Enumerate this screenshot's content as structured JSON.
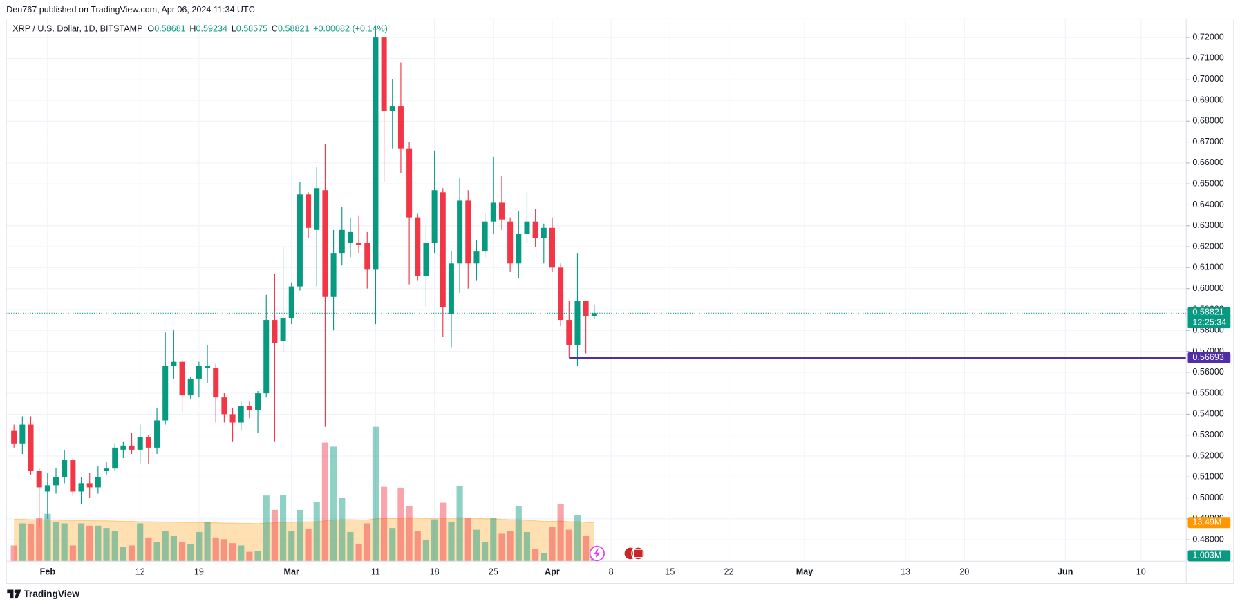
{
  "header": {
    "published": "Den767 published on TradingView.com, Apr 06, 2024 11:34 UTC"
  },
  "legend": {
    "symbol": "XRP / U.S. Dollar, 1D, BITSTAMP",
    "items": [
      {
        "key": "O",
        "value": "0.58681"
      },
      {
        "key": "H",
        "value": "0.59234"
      },
      {
        "key": "L",
        "value": "0.58575"
      },
      {
        "key": "C",
        "value": "0.58821"
      }
    ],
    "change": "+0.00082 (+0.14%)"
  },
  "footer": {
    "brand": "TradingView"
  },
  "chart_data": {
    "type": "candlestick",
    "x": [
      "2024-01-28",
      "2024-01-29",
      "2024-01-30",
      "2024-01-31",
      "2024-02-01",
      "2024-02-02",
      "2024-02-03",
      "2024-02-04",
      "2024-02-05",
      "2024-02-06",
      "2024-02-07",
      "2024-02-08",
      "2024-02-09",
      "2024-02-10",
      "2024-02-11",
      "2024-02-12",
      "2024-02-13",
      "2024-02-14",
      "2024-02-15",
      "2024-02-16",
      "2024-02-17",
      "2024-02-18",
      "2024-02-19",
      "2024-02-20",
      "2024-02-21",
      "2024-02-22",
      "2024-02-23",
      "2024-02-24",
      "2024-02-25",
      "2024-02-26",
      "2024-02-27",
      "2024-02-28",
      "2024-02-29",
      "2024-03-01",
      "2024-03-02",
      "2024-03-03",
      "2024-03-04",
      "2024-03-05",
      "2024-03-06",
      "2024-03-07",
      "2024-03-08",
      "2024-03-09",
      "2024-03-10",
      "2024-03-11",
      "2024-03-12",
      "2024-03-13",
      "2024-03-14",
      "2024-03-15",
      "2024-03-16",
      "2024-03-17",
      "2024-03-18",
      "2024-03-19",
      "2024-03-20",
      "2024-03-21",
      "2024-03-22",
      "2024-03-23",
      "2024-03-24",
      "2024-03-25",
      "2024-03-26",
      "2024-03-27",
      "2024-03-28",
      "2024-03-29",
      "2024-03-30",
      "2024-03-31",
      "2024-04-01",
      "2024-04-02",
      "2024-04-03",
      "2024-04-04",
      "2024-04-05",
      "2024-04-06"
    ],
    "open": [
      0.532,
      0.526,
      0.535,
      0.513,
      0.503,
      0.506,
      0.51,
      0.518,
      0.503,
      0.507,
      0.505,
      0.513,
      0.514,
      0.523,
      0.525,
      0.523,
      0.529,
      0.524,
      0.537,
      0.563,
      0.565,
      0.549,
      0.557,
      0.562,
      0.562,
      0.548,
      0.54,
      0.536,
      0.544,
      0.542,
      0.55,
      0.585,
      0.575,
      0.586,
      0.601,
      0.645,
      0.628,
      0.647,
      0.596,
      0.617,
      0.622,
      0.622,
      0.622,
      0.609,
      0.72,
      0.685,
      0.687,
      0.667,
      0.634,
      0.606,
      0.622,
      0.646,
      0.588,
      0.612,
      0.642,
      0.612,
      0.618,
      0.632,
      0.641,
      0.632,
      0.612,
      0.626,
      0.632,
      0.624,
      0.629,
      0.61,
      0.585,
      0.573,
      0.594,
      0.58681
    ],
    "high": [
      0.535,
      0.539,
      0.539,
      0.514,
      0.512,
      0.514,
      0.523,
      0.519,
      0.51,
      0.512,
      0.515,
      0.517,
      0.526,
      0.527,
      0.531,
      0.535,
      0.53,
      0.543,
      0.579,
      0.58,
      0.566,
      0.558,
      0.565,
      0.573,
      0.564,
      0.55,
      0.543,
      0.546,
      0.546,
      0.551,
      0.597,
      0.607,
      0.62,
      0.603,
      0.651,
      0.646,
      0.658,
      0.669,
      0.628,
      0.639,
      0.634,
      0.635,
      0.627,
      0.723,
      0.72,
      0.7,
      0.708,
      0.67,
      0.636,
      0.63,
      0.666,
      0.648,
      0.618,
      0.653,
      0.647,
      0.623,
      0.636,
      0.663,
      0.654,
      0.634,
      0.637,
      0.646,
      0.638,
      0.631,
      0.634,
      0.612,
      0.594,
      0.617,
      0.594,
      0.59234
    ],
    "low": [
      0.524,
      0.521,
      0.511,
      0.486,
      0.49,
      0.502,
      0.507,
      0.501,
      0.497,
      0.5,
      0.502,
      0.511,
      0.513,
      0.519,
      0.521,
      0.516,
      0.516,
      0.521,
      0.535,
      0.557,
      0.541,
      0.547,
      0.548,
      0.555,
      0.536,
      0.536,
      0.527,
      0.532,
      0.538,
      0.531,
      0.548,
      0.527,
      0.57,
      0.583,
      0.599,
      0.624,
      0.601,
      0.534,
      0.58,
      0.611,
      0.615,
      0.617,
      0.6,
      0.583,
      0.651,
      0.667,
      0.655,
      0.602,
      0.604,
      0.591,
      0.617,
      0.577,
      0.572,
      0.598,
      0.6,
      0.604,
      0.615,
      0.626,
      0.628,
      0.608,
      0.605,
      0.622,
      0.62,
      0.612,
      0.608,
      0.582,
      0.567,
      0.563,
      0.569,
      0.58575
    ],
    "close": [
      0.526,
      0.535,
      0.513,
      0.505,
      0.506,
      0.51,
      0.518,
      0.503,
      0.507,
      0.505,
      0.51,
      0.514,
      0.524,
      0.525,
      0.523,
      0.529,
      0.524,
      0.537,
      0.563,
      0.565,
      0.549,
      0.557,
      0.563,
      0.563,
      0.548,
      0.54,
      0.536,
      0.544,
      0.542,
      0.55,
      0.585,
      0.574,
      0.586,
      0.601,
      0.645,
      0.629,
      0.648,
      0.596,
      0.617,
      0.628,
      0.627,
      0.621,
      0.609,
      0.72,
      0.685,
      0.687,
      0.667,
      0.634,
      0.606,
      0.622,
      0.647,
      0.591,
      0.612,
      0.642,
      0.612,
      0.618,
      0.632,
      0.641,
      0.633,
      0.612,
      0.626,
      0.632,
      0.624,
      0.629,
      0.61,
      0.585,
      0.573,
      0.594,
      0.587,
      0.58821
    ],
    "volume": [
      5.5,
      13.2,
      12.9,
      15.1,
      16.5,
      13.8,
      13.2,
      5.5,
      13.2,
      12.4,
      12.4,
      11.6,
      10.5,
      5.0,
      5.5,
      13.2,
      8.3,
      6.6,
      10.5,
      8.8,
      6.6,
      6.1,
      10.2,
      13.8,
      8.3,
      7.7,
      6.3,
      5.5,
      3.3,
      3.6,
      22.9,
      17.9,
      23.1,
      10.5,
      17.9,
      11.3,
      20.6,
      41.3,
      39.9,
      22.0,
      10.2,
      6.1,
      13.2,
      46.8,
      25.9,
      11.6,
      25.6,
      19.3,
      10.5,
      7.4,
      14.6,
      20.4,
      13.8,
      26.2,
      15.1,
      11.0,
      6.6,
      15.1,
      9.6,
      10.5,
      19.3,
      10.2,
      4.4,
      2.8,
      12.1,
      19.8,
      11.0,
      16.0,
      8.8,
      1.003
    ],
    "volume_label": "1.003M",
    "volume_ma": [
      14.6,
      14.6,
      14.5,
      14.5,
      14.4,
      14.4,
      14.3,
      14.3,
      14.2,
      14.2,
      14.1,
      14.1,
      14.0,
      13.9,
      13.9,
      13.8,
      13.8,
      13.7,
      13.7,
      13.6,
      13.6,
      13.5,
      13.5,
      13.4,
      13.4,
      13.3,
      13.3,
      13.2,
      13.2,
      13.1,
      13.3,
      13.4,
      13.6,
      13.6,
      13.7,
      13.7,
      13.8,
      14.1,
      14.4,
      14.5,
      14.5,
      14.4,
      14.4,
      14.8,
      15.0,
      14.9,
      15.1,
      15.2,
      15.1,
      15.0,
      15.0,
      15.1,
      15.0,
      15.2,
      15.1,
      15.0,
      14.8,
      14.8,
      14.6,
      14.5,
      14.5,
      14.3,
      14.1,
      13.9,
      13.9,
      14.0,
      13.8,
      13.8,
      13.6,
      13.49
    ],
    "volume_ma_label": "13.49M",
    "up_color": "#089981",
    "down_color": "#f23645",
    "volume_ma_color": "#ff9800",
    "countdown": "12:25:34",
    "horizontal_line": {
      "value": 0.56693,
      "start": "2024-04-03",
      "color": "#512da8"
    },
    "xlim": [
      "2024-01-27",
      "2024-06-15"
    ],
    "xticks": [
      {
        "value": "2024-02-01",
        "label": "Feb"
      },
      {
        "value": "2024-02-12",
        "label": "12"
      },
      {
        "value": "2024-02-19",
        "label": "19"
      },
      {
        "value": "2024-03-01",
        "label": "Mar"
      },
      {
        "value": "2024-03-11",
        "label": "11"
      },
      {
        "value": "2024-03-18",
        "label": "18"
      },
      {
        "value": "2024-03-25",
        "label": "25"
      },
      {
        "value": "2024-04-01",
        "label": "Apr"
      },
      {
        "value": "2024-04-08",
        "label": "8"
      },
      {
        "value": "2024-04-15",
        "label": "15"
      },
      {
        "value": "2024-04-22",
        "label": "22"
      },
      {
        "value": "2024-05-01",
        "label": "May"
      },
      {
        "value": "2024-05-13",
        "label": "13"
      },
      {
        "value": "2024-05-20",
        "label": "20"
      },
      {
        "value": "2024-06-01",
        "label": "Jun"
      },
      {
        "value": "2024-06-10",
        "label": "10"
      }
    ],
    "ylim": [
      0.4697,
      0.7288
    ],
    "yticks": [
      {
        "value": 0.48,
        "label": "0.48000"
      },
      {
        "value": 0.49,
        "label": "0.49000"
      },
      {
        "value": 0.5,
        "label": "0.50000"
      },
      {
        "value": 0.51,
        "label": "0.51000"
      },
      {
        "value": 0.52,
        "label": "0.52000"
      },
      {
        "value": 0.53,
        "label": "0.53000"
      },
      {
        "value": 0.54,
        "label": "0.54000"
      },
      {
        "value": 0.55,
        "label": "0.55000"
      },
      {
        "value": 0.56,
        "label": "0.56000"
      },
      {
        "value": 0.57,
        "label": "0.57000"
      },
      {
        "value": 0.58,
        "label": "0.58000"
      },
      {
        "value": 0.59,
        "label": "0.59000"
      },
      {
        "value": 0.6,
        "label": "0.60000"
      },
      {
        "value": 0.61,
        "label": "0.61000"
      },
      {
        "value": 0.62,
        "label": "0.62000"
      },
      {
        "value": 0.63,
        "label": "0.63000"
      },
      {
        "value": 0.64,
        "label": "0.64000"
      },
      {
        "value": 0.65,
        "label": "0.65000"
      },
      {
        "value": 0.66,
        "label": "0.66000"
      },
      {
        "value": 0.67,
        "label": "0.67000"
      },
      {
        "value": 0.68,
        "label": "0.68000"
      },
      {
        "value": 0.69,
        "label": "0.69000"
      },
      {
        "value": 0.7,
        "label": "0.70000"
      },
      {
        "value": 0.71,
        "label": "0.71000"
      },
      {
        "value": 0.72,
        "label": "0.72000"
      }
    ],
    "grid": true
  }
}
